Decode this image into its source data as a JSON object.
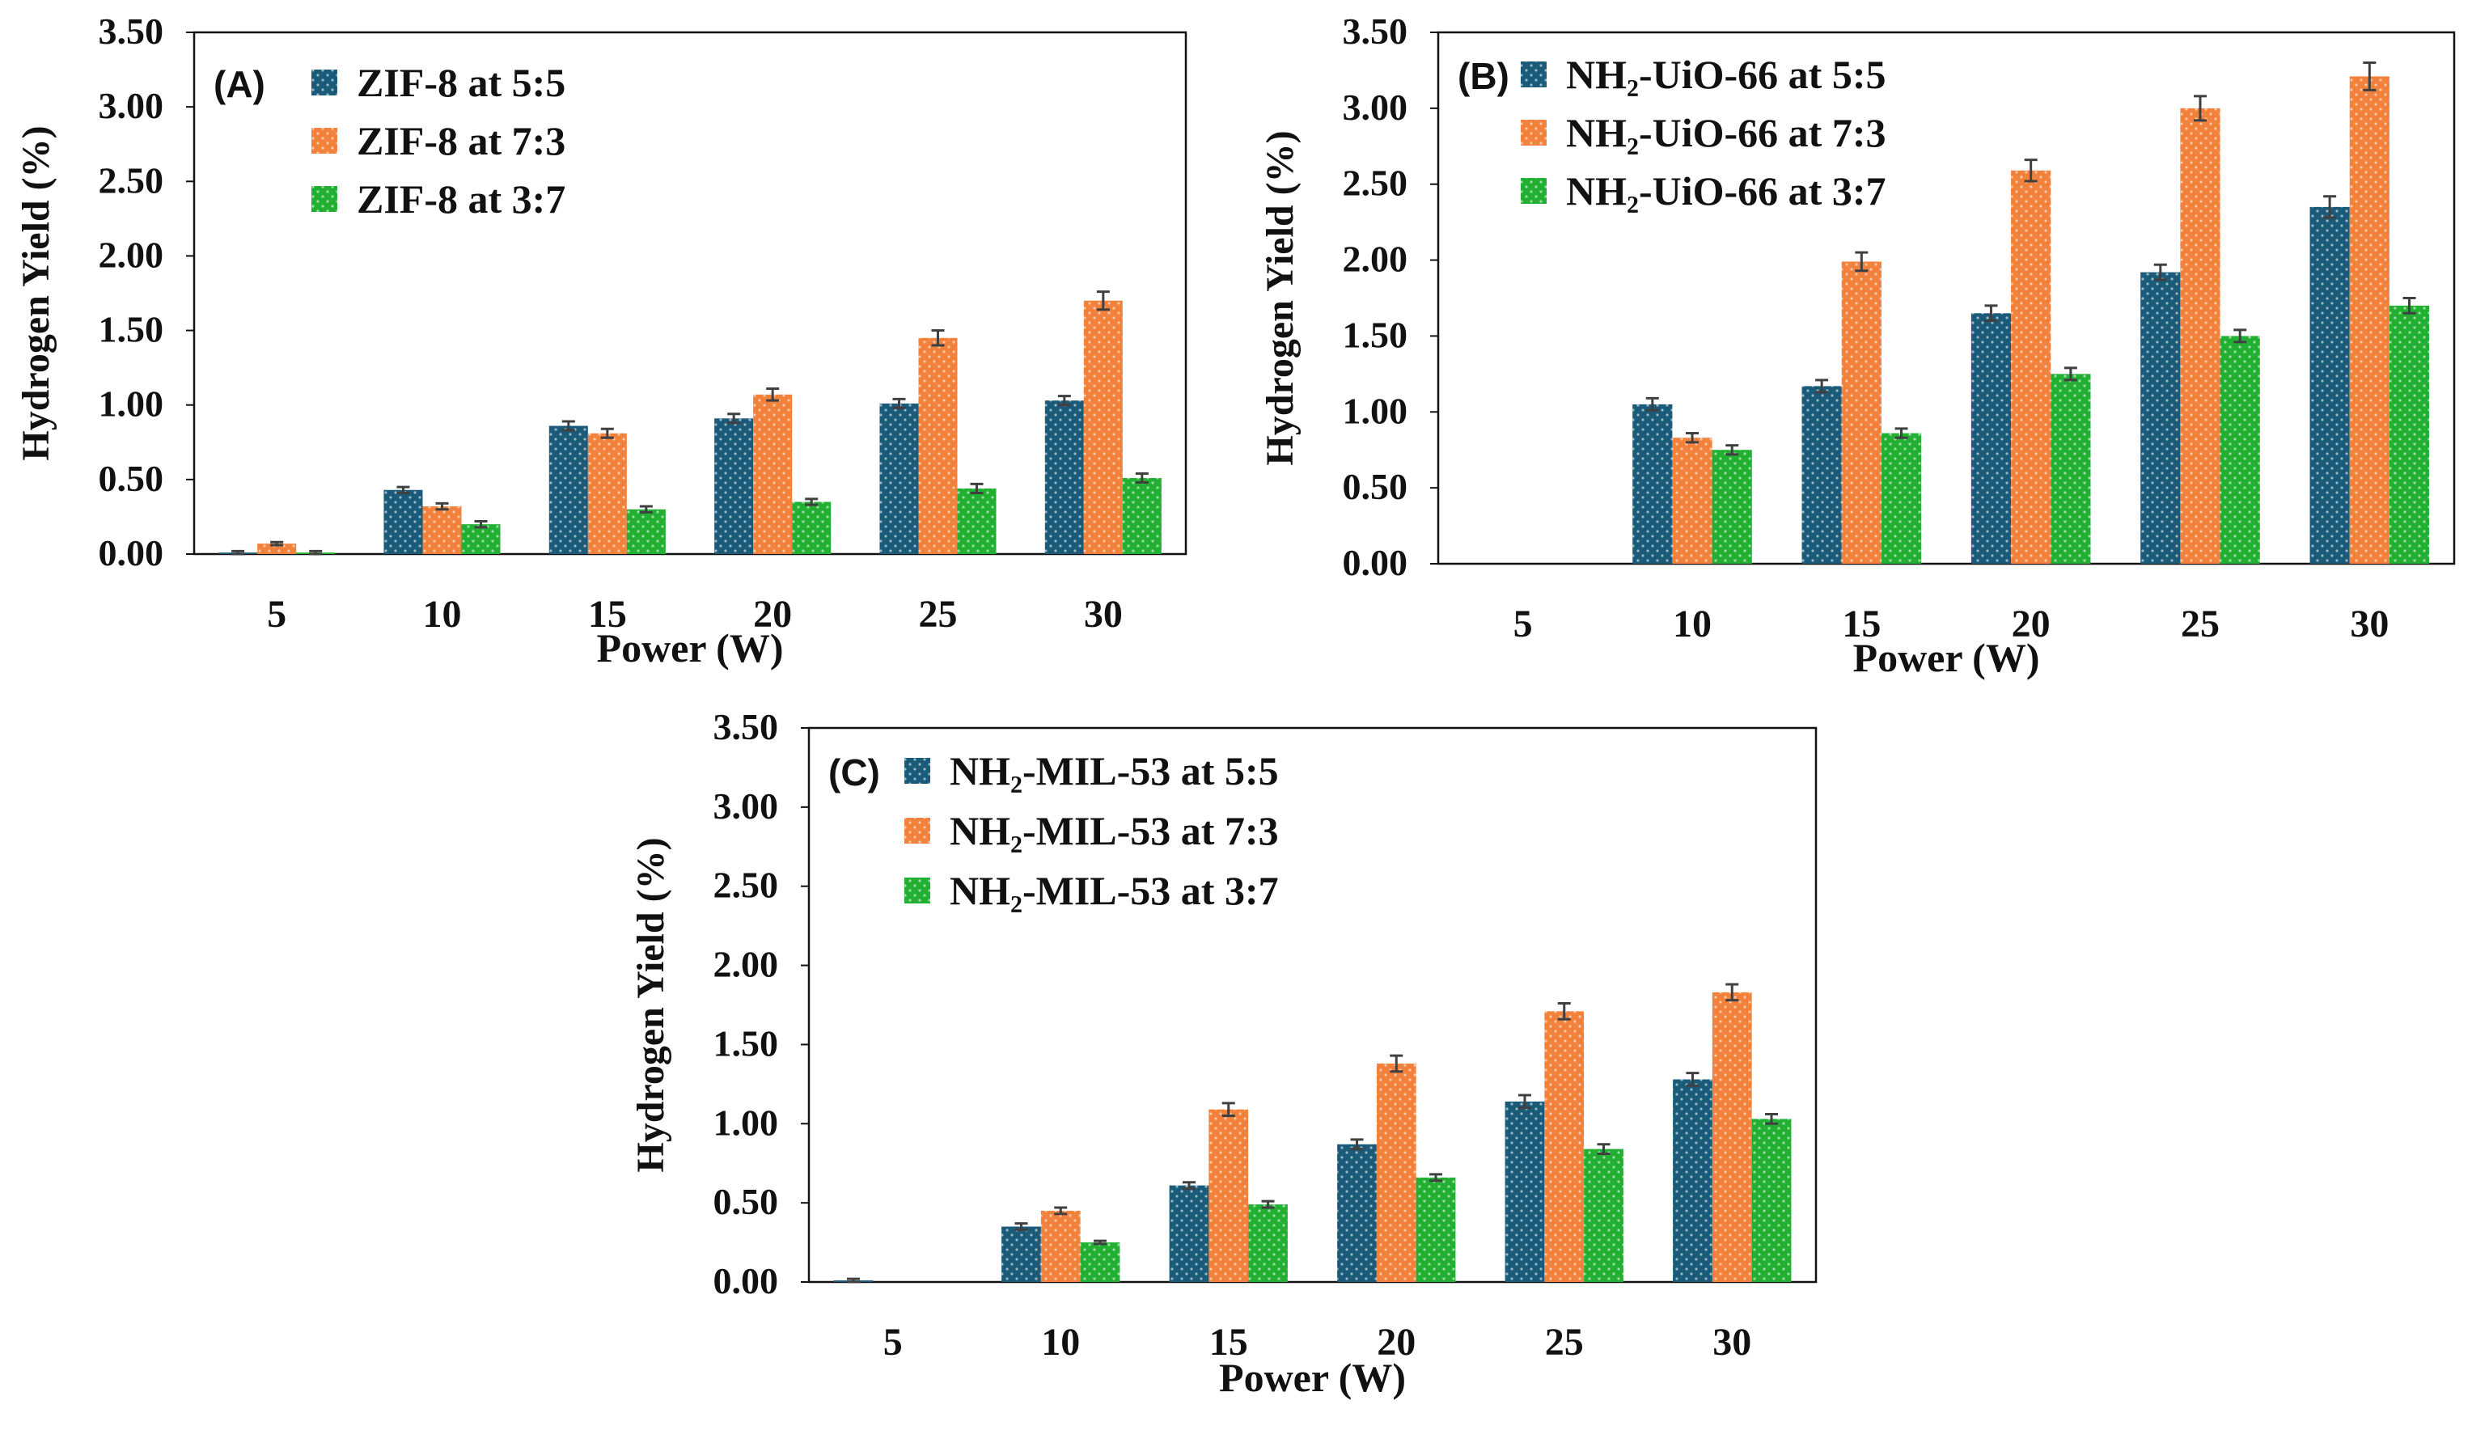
{
  "figure": {
    "panels": [
      "(A)",
      "(B)",
      "(C)"
    ]
  },
  "colors": {
    "series_1": "#1b5b7a",
    "series_2": "#f2813c",
    "series_3": "#22b033",
    "axis": "#111111",
    "error_bar": "#404040",
    "dot": "#ffffff"
  },
  "chart_data": [
    {
      "type": "bar",
      "panel_label": "(A)",
      "title": "",
      "xlabel": "Power (W)",
      "ylabel": "Hydrogen Yield (%)",
      "categories": [
        "5",
        "10",
        "15",
        "20",
        "25",
        "30"
      ],
      "ylim": [
        0,
        3.5
      ],
      "yticks": [
        "0.00",
        "0.50",
        "1.00",
        "1.50",
        "2.00",
        "2.50",
        "3.00",
        "3.50"
      ],
      "grid": false,
      "legend_position": "top-left",
      "series": [
        {
          "name": "ZIF-8 at 5:5",
          "values": [
            0.01,
            0.43,
            0.86,
            0.91,
            1.01,
            1.03
          ],
          "errors": [
            0.01,
            0.02,
            0.03,
            0.03,
            0.03,
            0.03
          ]
        },
        {
          "name": "ZIF-8 at 7:3",
          "values": [
            0.07,
            0.32,
            0.81,
            1.07,
            1.45,
            1.7
          ],
          "errors": [
            0.01,
            0.02,
            0.03,
            0.04,
            0.05,
            0.06
          ]
        },
        {
          "name": "ZIF-8 at 3:7",
          "values": [
            0.01,
            0.2,
            0.3,
            0.35,
            0.44,
            0.51
          ],
          "errors": [
            0.01,
            0.02,
            0.02,
            0.02,
            0.03,
            0.03
          ]
        }
      ]
    },
    {
      "type": "bar",
      "panel_label": "(B)",
      "title": "",
      "xlabel": "Power (W)",
      "ylabel": "Hydrogen Yield (%)",
      "categories": [
        "5",
        "10",
        "15",
        "20",
        "25",
        "30"
      ],
      "ylim": [
        0,
        3.5
      ],
      "yticks": [
        "0.00",
        "0.50",
        "1.00",
        "1.50",
        "2.00",
        "2.50",
        "3.00",
        "3.50"
      ],
      "grid": false,
      "legend_position": "top-left",
      "series": [
        {
          "name": "NH₂-UiO-66 at 5:5",
          "values": [
            0,
            1.05,
            1.17,
            1.65,
            1.92,
            2.35
          ],
          "errors": [
            0,
            0.04,
            0.04,
            0.05,
            0.05,
            0.07
          ]
        },
        {
          "name": "NH₂-UiO-66 at 7:3",
          "values": [
            0,
            0.83,
            1.99,
            2.59,
            3.0,
            3.21
          ],
          "errors": [
            0,
            0.03,
            0.06,
            0.07,
            0.08,
            0.09
          ]
        },
        {
          "name": "NH₂-UiO-66 at 3:7",
          "values": [
            0,
            0.75,
            0.86,
            1.25,
            1.5,
            1.7
          ],
          "errors": [
            0,
            0.03,
            0.03,
            0.04,
            0.04,
            0.05
          ]
        }
      ]
    },
    {
      "type": "bar",
      "panel_label": "(C)",
      "title": "",
      "xlabel": "Power (W)",
      "ylabel": "Hydrogen Yield (%)",
      "categories": [
        "5",
        "10",
        "15",
        "20",
        "25",
        "30"
      ],
      "ylim": [
        0,
        3.5
      ],
      "yticks": [
        "0.00",
        "0.50",
        "1.00",
        "1.50",
        "2.00",
        "2.50",
        "3.00",
        "3.50"
      ],
      "grid": false,
      "legend_position": "top-left",
      "series": [
        {
          "name": "NH₂-MIL-53 at 5:5",
          "values": [
            0.01,
            0.35,
            0.61,
            0.87,
            1.14,
            1.28
          ],
          "errors": [
            0.01,
            0.02,
            0.02,
            0.03,
            0.04,
            0.04
          ]
        },
        {
          "name": "NH₂-MIL-53 at 7:3",
          "values": [
            0,
            0.45,
            1.09,
            1.38,
            1.71,
            1.83
          ],
          "errors": [
            0,
            0.02,
            0.04,
            0.05,
            0.05,
            0.05
          ]
        },
        {
          "name": "NH₂-MIL-53 at 3:7",
          "values": [
            0,
            0.25,
            0.49,
            0.66,
            0.84,
            1.03
          ],
          "errors": [
            0,
            0.01,
            0.02,
            0.02,
            0.03,
            0.03
          ]
        }
      ]
    }
  ]
}
